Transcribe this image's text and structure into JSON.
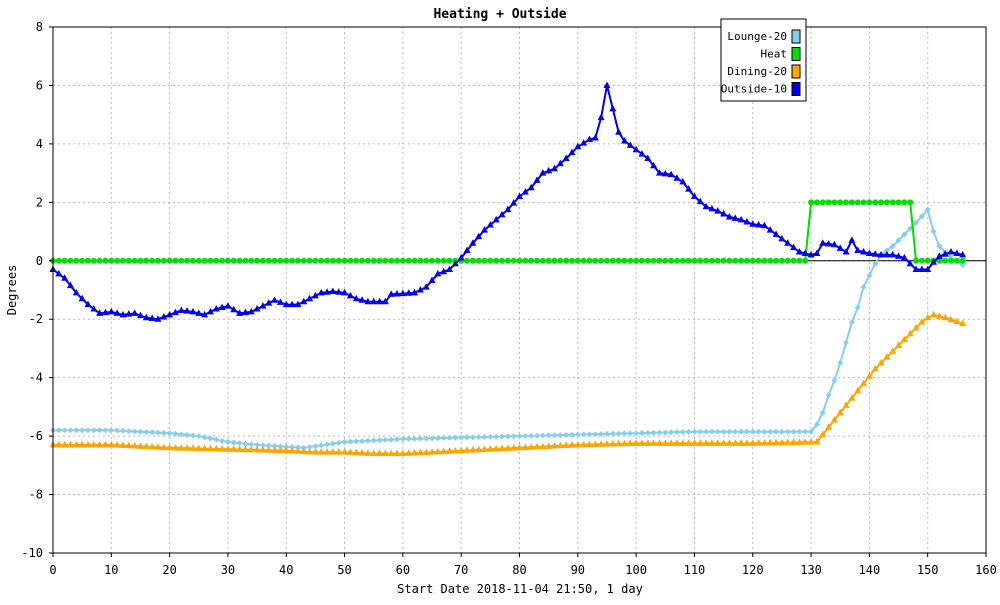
{
  "chart_data": {
    "type": "line",
    "title": "Heating + Outside",
    "xlabel": "Start Date 2018-11-04 21:50, 1 day",
    "ylabel": "Degrees",
    "xlim": [
      0,
      160
    ],
    "ylim": [
      -10,
      8
    ],
    "xticks": [
      0,
      10,
      20,
      30,
      40,
      50,
      60,
      70,
      80,
      90,
      100,
      110,
      120,
      130,
      140,
      150,
      160
    ],
    "yticks": [
      -10,
      -8,
      -6,
      -4,
      -2,
      0,
      2,
      4,
      6,
      8
    ],
    "grid": true,
    "legend_position": "top-right",
    "series": [
      {
        "name": "Lounge-20",
        "color": "#87ceeb",
        "marker": "diamond",
        "anchors": [
          [
            0,
            -5.8
          ],
          [
            10,
            -5.8
          ],
          [
            20,
            -5.9
          ],
          [
            25,
            -6.0
          ],
          [
            30,
            -6.2
          ],
          [
            35,
            -6.3
          ],
          [
            43,
            -6.4
          ],
          [
            50,
            -6.2
          ],
          [
            60,
            -6.1
          ],
          [
            70,
            -6.05
          ],
          [
            80,
            -6.0
          ],
          [
            90,
            -5.95
          ],
          [
            100,
            -5.9
          ],
          [
            110,
            -5.85
          ],
          [
            120,
            -5.85
          ],
          [
            130,
            -5.85
          ],
          [
            131,
            -5.6
          ],
          [
            132,
            -5.2
          ],
          [
            133,
            -4.6
          ],
          [
            134,
            -4.1
          ],
          [
            135,
            -3.5
          ],
          [
            136,
            -2.8
          ],
          [
            137,
            -2.1
          ],
          [
            138,
            -1.6
          ],
          [
            139,
            -0.9
          ],
          [
            140,
            -0.5
          ],
          [
            141,
            -0.1
          ],
          [
            142,
            0.2
          ],
          [
            144,
            0.5
          ],
          [
            146,
            0.9
          ],
          [
            148,
            1.3
          ],
          [
            150,
            1.75
          ],
          [
            151,
            1.0
          ],
          [
            152,
            0.5
          ],
          [
            154,
            0.1
          ],
          [
            155,
            0.0
          ],
          [
            156,
            -0.15
          ]
        ]
      },
      {
        "name": "Heat",
        "color": "#00dd00",
        "marker": "circle",
        "anchors": [
          [
            0,
            0
          ],
          [
            129,
            0
          ],
          [
            130,
            2
          ],
          [
            147,
            2
          ],
          [
            148,
            0
          ],
          [
            156,
            0
          ]
        ]
      },
      {
        "name": "Dining-20",
        "color": "#ffa500",
        "marker": "triangle",
        "anchors": [
          [
            0,
            -6.3
          ],
          [
            10,
            -6.3
          ],
          [
            20,
            -6.4
          ],
          [
            30,
            -6.45
          ],
          [
            40,
            -6.5
          ],
          [
            45,
            -6.55
          ],
          [
            50,
            -6.55
          ],
          [
            55,
            -6.6
          ],
          [
            60,
            -6.6
          ],
          [
            70,
            -6.5
          ],
          [
            80,
            -6.4
          ],
          [
            90,
            -6.3
          ],
          [
            100,
            -6.25
          ],
          [
            110,
            -6.25
          ],
          [
            120,
            -6.25
          ],
          [
            131,
            -6.2
          ],
          [
            133,
            -5.7
          ],
          [
            135,
            -5.2
          ],
          [
            137,
            -4.7
          ],
          [
            139,
            -4.2
          ],
          [
            141,
            -3.7
          ],
          [
            143,
            -3.3
          ],
          [
            145,
            -2.9
          ],
          [
            147,
            -2.5
          ],
          [
            149,
            -2.1
          ],
          [
            150,
            -1.95
          ],
          [
            151,
            -1.85
          ],
          [
            153,
            -1.95
          ],
          [
            156,
            -2.15
          ]
        ]
      },
      {
        "name": "Outside-10",
        "color": "#0000ee",
        "marker": "triangle",
        "anchors": [
          [
            0,
            -0.3
          ],
          [
            2,
            -0.6
          ],
          [
            4,
            -1.1
          ],
          [
            6,
            -1.5
          ],
          [
            8,
            -1.8
          ],
          [
            10,
            -1.75
          ],
          [
            12,
            -1.85
          ],
          [
            14,
            -1.8
          ],
          [
            16,
            -1.95
          ],
          [
            18,
            -2.0
          ],
          [
            20,
            -1.85
          ],
          [
            22,
            -1.7
          ],
          [
            24,
            -1.75
          ],
          [
            26,
            -1.85
          ],
          [
            28,
            -1.65
          ],
          [
            30,
            -1.55
          ],
          [
            32,
            -1.8
          ],
          [
            34,
            -1.75
          ],
          [
            36,
            -1.55
          ],
          [
            38,
            -1.35
          ],
          [
            40,
            -1.5
          ],
          [
            42,
            -1.5
          ],
          [
            44,
            -1.3
          ],
          [
            46,
            -1.1
          ],
          [
            48,
            -1.05
          ],
          [
            50,
            -1.1
          ],
          [
            52,
            -1.3
          ],
          [
            54,
            -1.4
          ],
          [
            57,
            -1.4
          ],
          [
            58,
            -1.15
          ],
          [
            62,
            -1.1
          ],
          [
            64,
            -0.9
          ],
          [
            66,
            -0.45
          ],
          [
            68,
            -0.3
          ],
          [
            70,
            0.1
          ],
          [
            72,
            0.6
          ],
          [
            74,
            1.05
          ],
          [
            76,
            1.4
          ],
          [
            78,
            1.75
          ],
          [
            80,
            2.2
          ],
          [
            82,
            2.5
          ],
          [
            84,
            3.0
          ],
          [
            86,
            3.15
          ],
          [
            88,
            3.5
          ],
          [
            90,
            3.9
          ],
          [
            92,
            4.15
          ],
          [
            93,
            4.2
          ],
          [
            94,
            4.9
          ],
          [
            95,
            6.0
          ],
          [
            96,
            5.2
          ],
          [
            97,
            4.4
          ],
          [
            98,
            4.1
          ],
          [
            100,
            3.8
          ],
          [
            102,
            3.5
          ],
          [
            104,
            3.0
          ],
          [
            106,
            2.95
          ],
          [
            108,
            2.7
          ],
          [
            110,
            2.2
          ],
          [
            112,
            1.85
          ],
          [
            114,
            1.7
          ],
          [
            116,
            1.5
          ],
          [
            118,
            1.4
          ],
          [
            120,
            1.25
          ],
          [
            122,
            1.2
          ],
          [
            124,
            0.9
          ],
          [
            126,
            0.6
          ],
          [
            128,
            0.3
          ],
          [
            130,
            0.2
          ],
          [
            131,
            0.25
          ],
          [
            132,
            0.6
          ],
          [
            134,
            0.55
          ],
          [
            136,
            0.3
          ],
          [
            137,
            0.7
          ],
          [
            138,
            0.35
          ],
          [
            140,
            0.25
          ],
          [
            142,
            0.2
          ],
          [
            144,
            0.2
          ],
          [
            146,
            0.1
          ],
          [
            148,
            -0.3
          ],
          [
            150,
            -0.3
          ],
          [
            151,
            -0.05
          ],
          [
            152,
            0.15
          ],
          [
            154,
            0.3
          ],
          [
            156,
            0.2
          ]
        ]
      }
    ]
  }
}
